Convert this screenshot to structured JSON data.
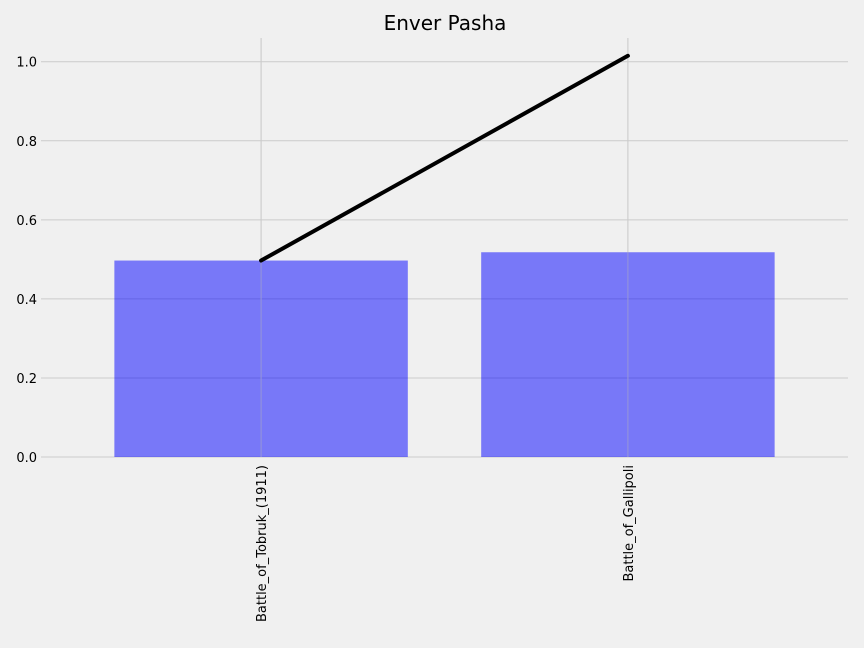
{
  "chart_data": {
    "type": "bar",
    "title": "Enver Pasha",
    "xlabel": "",
    "ylabel": "",
    "categories": [
      "Battle_of_Tobruk_(1911)",
      "Battle_of_Gallipoli"
    ],
    "series": [
      {
        "type": "bar",
        "values": [
          0.497,
          0.518
        ],
        "color": "#0000ff",
        "opacity": 0.5
      },
      {
        "type": "line",
        "values": [
          0.497,
          1.015
        ],
        "color": "#000000"
      }
    ],
    "ylim": [
      0,
      1.06
    ],
    "yticks": [
      "0.0",
      "0.2",
      "0.4",
      "0.6",
      "0.8",
      "1.0"
    ],
    "grid": true,
    "legend": "none",
    "background": "#f0f0f0"
  }
}
